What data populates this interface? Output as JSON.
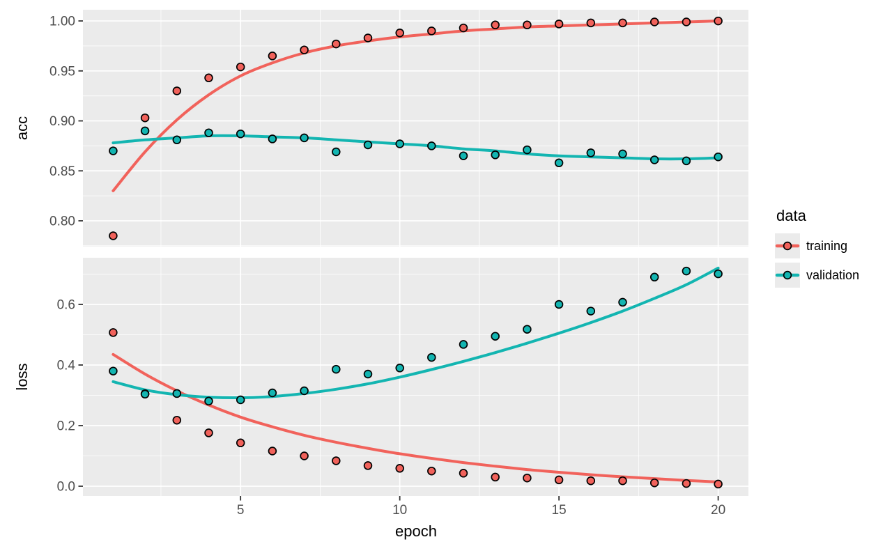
{
  "figure": {
    "background": "#FFFFFF"
  },
  "legend": {
    "title": "data",
    "key_background": "#EBEBEB",
    "items": [
      {
        "label": "training",
        "color": "#F1625B"
      },
      {
        "label": "validation",
        "color": "#13B5B1"
      }
    ]
  },
  "chart_data": {
    "type": "scatter",
    "smooth_lines": true,
    "title": "",
    "xlabel": "epoch",
    "x_values": [
      1,
      2,
      3,
      4,
      5,
      6,
      7,
      8,
      9,
      10,
      11,
      12,
      13,
      14,
      15,
      16,
      17,
      18,
      19,
      20
    ],
    "xlim": [
      0.05,
      20.95
    ],
    "xticks": {
      "values": [
        5,
        10,
        15,
        20
      ],
      "labels": [
        "5",
        "10",
        "15",
        "20"
      ]
    },
    "x_minor_gridlines": [
      2.5,
      7.5,
      12.5,
      17.5
    ],
    "legend_position": "right",
    "grid": true,
    "facets": [
      {
        "ylabel": "acc",
        "ylim": [
          0.7742,
          1.0112
        ],
        "yticks": {
          "values": [
            0.8,
            0.85,
            0.9,
            0.95,
            1.0
          ],
          "labels": [
            "0.80",
            "0.85",
            "0.90",
            "0.95",
            "1.00"
          ]
        },
        "y_minor_gridlines": [
          0.775,
          0.825,
          0.875,
          0.925,
          0.975
        ],
        "series": [
          {
            "name": "training",
            "color": "#F1625B",
            "points": [
              0.785,
              0.903,
              0.93,
              0.943,
              0.954,
              0.965,
              0.971,
              0.977,
              0.983,
              0.988,
              0.99,
              0.993,
              0.996,
              0.996,
              0.997,
              0.998,
              0.998,
              0.999,
              0.999,
              1.0
            ],
            "smooth": [
              0.83,
              0.869,
              0.901,
              0.926,
              0.945,
              0.958,
              0.968,
              0.975,
              0.98,
              0.984,
              0.987,
              0.99,
              0.992,
              0.994,
              0.995,
              0.996,
              0.997,
              0.998,
              0.999,
              1.0
            ]
          },
          {
            "name": "validation",
            "color": "#13B5B1",
            "points": [
              0.87,
              0.89,
              0.881,
              0.888,
              0.887,
              0.882,
              0.883,
              0.869,
              0.876,
              0.877,
              0.875,
              0.865,
              0.866,
              0.871,
              0.858,
              0.868,
              0.867,
              0.861,
              0.86,
              0.864
            ],
            "smooth": [
              0.878,
              0.881,
              0.883,
              0.885,
              0.885,
              0.884,
              0.883,
              0.881,
              0.879,
              0.877,
              0.875,
              0.872,
              0.87,
              0.867,
              0.865,
              0.864,
              0.863,
              0.862,
              0.862,
              0.863
            ]
          }
        ]
      },
      {
        "ylabel": "loss",
        "ylim": [
          -0.0322,
          0.754
        ],
        "yticks": {
          "values": [
            0.0,
            0.2,
            0.4,
            0.6
          ],
          "labels": [
            "0.0",
            "0.2",
            "0.4",
            "0.6"
          ]
        },
        "y_minor_gridlines": [
          0.1,
          0.3,
          0.5,
          0.7
        ],
        "series": [
          {
            "name": "training",
            "color": "#F1625B",
            "points": [
              0.507,
              0.305,
              0.218,
              0.176,
              0.143,
              0.116,
              0.1,
              0.084,
              0.068,
              0.059,
              0.05,
              0.043,
              0.03,
              0.027,
              0.021,
              0.018,
              0.018,
              0.011,
              0.009,
              0.007
            ],
            "smooth": [
              0.435,
              0.37,
              0.315,
              0.268,
              0.228,
              0.196,
              0.168,
              0.145,
              0.125,
              0.107,
              0.092,
              0.078,
              0.066,
              0.055,
              0.046,
              0.038,
              0.031,
              0.025,
              0.019,
              0.014
            ]
          },
          {
            "name": "validation",
            "color": "#13B5B1",
            "points": [
              0.38,
              0.304,
              0.306,
              0.281,
              0.285,
              0.308,
              0.315,
              0.386,
              0.37,
              0.39,
              0.425,
              0.468,
              0.495,
              0.518,
              0.6,
              0.578,
              0.607,
              0.69,
              0.71,
              0.701
            ],
            "smooth": [
              0.345,
              0.318,
              0.302,
              0.294,
              0.292,
              0.296,
              0.306,
              0.32,
              0.338,
              0.36,
              0.385,
              0.412,
              0.441,
              0.472,
              0.505,
              0.54,
              0.578,
              0.62,
              0.665,
              0.72
            ]
          }
        ]
      }
    ],
    "styles": {
      "panel_background": "#EBEBEB",
      "gridline_color": "#FFFFFF",
      "tick_label_color": "#4D4D4D",
      "tick_mark_color": "#333333",
      "point_outline": "#000000"
    }
  }
}
